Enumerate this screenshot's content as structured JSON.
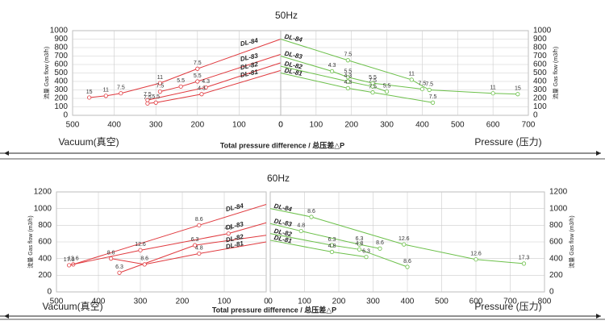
{
  "panels": [
    {
      "title": "50Hz",
      "x_label": "Total pressure difference / 总压差△P",
      "left_label": "Vacuum(真空)",
      "right_label": "Pressure (压力)"
    },
    {
      "title": "60Hz",
      "x_label": "Total pressure difference / 总压差△P",
      "left_label": "Vacuum(真空)",
      "right_label": "Pressure (压力)"
    }
  ],
  "chart_data": [
    {
      "type": "line",
      "y_label": "流量 Gas flow (m3/h)",
      "xlim": [
        500,
        0
      ],
      "xticks": [
        500,
        400,
        300,
        200,
        100,
        0
      ],
      "ylim": [
        0,
        1000
      ],
      "yticks": [
        0,
        100,
        200,
        300,
        400,
        500,
        600,
        700,
        800,
        900,
        1000
      ],
      "grid": true,
      "series": [
        {
          "name": "DL-84",
          "color": "#e0393e",
          "x": [
            0,
            200,
            290,
            384,
            420,
            460
          ],
          "values": [
            900,
            550,
            380,
            260,
            230,
            210
          ],
          "labels": [
            null,
            "7.5",
            "11",
            "7.5",
            "11",
            "15"
          ]
        },
        {
          "name": "DL-83",
          "color": "#e0393e",
          "x": [
            0,
            200,
            240,
            290
          ],
          "values": [
            720,
            400,
            340,
            280
          ],
          "labels": [
            null,
            "5.5",
            "5.5",
            "7.5"
          ]
        },
        {
          "name": "DL-82",
          "color": "#e0393e",
          "x": [
            0,
            180,
            320
          ],
          "values": [
            620,
            330,
            180
          ],
          "labels": [
            null,
            "4.3",
            "7.5"
          ]
        },
        {
          "name": "DL-81",
          "color": "#e0393e",
          "x": [
            0,
            190,
            300,
            320
          ],
          "values": [
            530,
            250,
            150,
            140
          ],
          "labels": [
            null,
            "4.3",
            "5.5",
            "7.5"
          ]
        }
      ]
    },
    {
      "type": "line",
      "y_label": "流量 Gas flow (m3/h)",
      "xlim": [
        0,
        700
      ],
      "xticks": [
        0,
        100,
        200,
        300,
        400,
        500,
        600,
        700
      ],
      "ylim": [
        0,
        1000
      ],
      "yticks": [
        0,
        100,
        200,
        300,
        400,
        500,
        600,
        700,
        800,
        900,
        1000
      ],
      "grid": true,
      "series": [
        {
          "name": "DL-84",
          "color": "#6cc04a",
          "x": [
            0,
            190,
            370,
            420,
            600,
            670
          ],
          "values": [
            900,
            650,
            420,
            300,
            260,
            250
          ],
          "labels": [
            null,
            "7.5",
            "11",
            "7.5",
            "11",
            "15"
          ]
        },
        {
          "name": "DL-83",
          "color": "#6cc04a",
          "x": [
            0,
            145,
            190,
            260,
            400
          ],
          "values": [
            700,
            520,
            450,
            380,
            310
          ],
          "labels": [
            null,
            "4.3",
            "5.5",
            "5.5",
            "7.5"
          ]
        },
        {
          "name": "DL-82",
          "color": "#6cc04a",
          "x": [
            0,
            190,
            260,
            300
          ],
          "values": [
            580,
            400,
            340,
            280
          ],
          "labels": [
            null,
            "4.3",
            "7.5",
            "5.5"
          ]
        },
        {
          "name": "DL-81",
          "color": "#6cc04a",
          "x": [
            0,
            190,
            260,
            430
          ],
          "values": [
            500,
            320,
            270,
            150
          ],
          "labels": [
            null,
            "4.3",
            "7.5",
            "7.5"
          ]
        }
      ]
    },
    {
      "type": "line",
      "y_label": "流量 Gas flow (m3/h)",
      "xlim": [
        500,
        0
      ],
      "xticks": [
        500,
        400,
        300,
        200,
        100,
        0
      ],
      "ylim": [
        0,
        1200
      ],
      "yticks": [
        0,
        200,
        400,
        600,
        800,
        1000,
        1200
      ],
      "grid": true,
      "series": [
        {
          "name": "DL-84",
          "color": "#e0393e",
          "x": [
            0,
            160,
            460
          ],
          "values": [
            1050,
            800,
            330
          ],
          "labels": [
            null,
            "8.6",
            "12.6"
          ]
        },
        {
          "name": "DL-83",
          "color": "#e0393e",
          "x": [
            0,
            90,
            300,
            470
          ],
          "values": [
            830,
            700,
            500,
            320
          ],
          "labels": [
            null,
            "4.8",
            "12.6",
            "17.3"
          ]
        },
        {
          "name": "DL-82",
          "color": "#e0393e",
          "x": [
            0,
            170,
            350
          ],
          "values": [
            680,
            560,
            230
          ],
          "labels": [
            null,
            "6.3",
            "6.3"
          ]
        },
        {
          "name": "DL-81",
          "color": "#e0393e",
          "x": [
            0,
            160,
            290,
            370
          ],
          "values": [
            600,
            460,
            330,
            400
          ],
          "labels": [
            null,
            "4.8",
            "8.6",
            "8.6"
          ]
        }
      ]
    },
    {
      "type": "line",
      "y_label": "流量 Gas flow (m3/h)",
      "xlim": [
        0,
        800
      ],
      "xticks": [
        0,
        100,
        200,
        300,
        400,
        500,
        600,
        700,
        800
      ],
      "ylim": [
        0,
        1200
      ],
      "yticks": [
        0,
        200,
        400,
        600,
        800,
        1000,
        1200
      ],
      "grid": true,
      "series": [
        {
          "name": "DL-84",
          "color": "#6cc04a",
          "x": [
            0,
            120,
            390,
            600,
            740
          ],
          "values": [
            1000,
            900,
            570,
            390,
            340
          ],
          "labels": [
            null,
            "8.6",
            "12.6",
            "12.6",
            "17.3"
          ]
        },
        {
          "name": "DL-83",
          "color": "#6cc04a",
          "x": [
            0,
            90,
            260,
            320
          ],
          "values": [
            820,
            730,
            570,
            520
          ],
          "labels": [
            null,
            "4.8",
            "6.3",
            "8.6"
          ]
        },
        {
          "name": "DL-82",
          "color": "#6cc04a",
          "x": [
            0,
            180,
            260,
            400
          ],
          "values": [
            700,
            560,
            510,
            300
          ],
          "labels": [
            null,
            "6.3",
            "4.8",
            "8.6"
          ]
        },
        {
          "name": "DL-81",
          "color": "#6cc04a",
          "x": [
            0,
            180,
            280
          ],
          "values": [
            620,
            480,
            420
          ],
          "labels": [
            null,
            "4.8",
            "6.3"
          ]
        }
      ]
    }
  ]
}
